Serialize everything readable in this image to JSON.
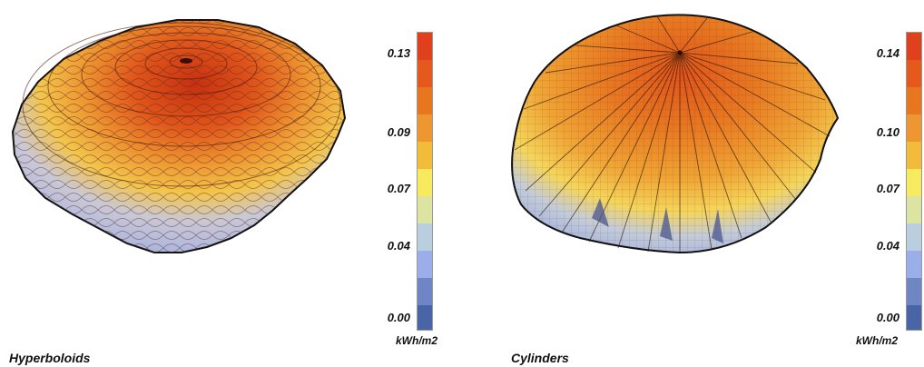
{
  "panels": [
    {
      "caption": "Hyperboloids",
      "legend": {
        "unit": "kWh/m2",
        "ticks": [
          "0.13",
          "0.09",
          "0.07",
          "0.04",
          "0.00"
        ]
      }
    },
    {
      "caption": "Cylinders",
      "legend": {
        "unit": "kWh/m2",
        "ticks": [
          "0.14",
          "0.10",
          "0.07",
          "0.04",
          "0.00"
        ]
      }
    }
  ],
  "colormap": [
    "#e0401c",
    "#e55a1c",
    "#e8761f",
    "#ee9730",
    "#f2bc3a",
    "#f7ea5e",
    "#dde3a1",
    "#b9cfdf",
    "#9aaee9",
    "#6f86c4",
    "#4a64a8"
  ]
}
